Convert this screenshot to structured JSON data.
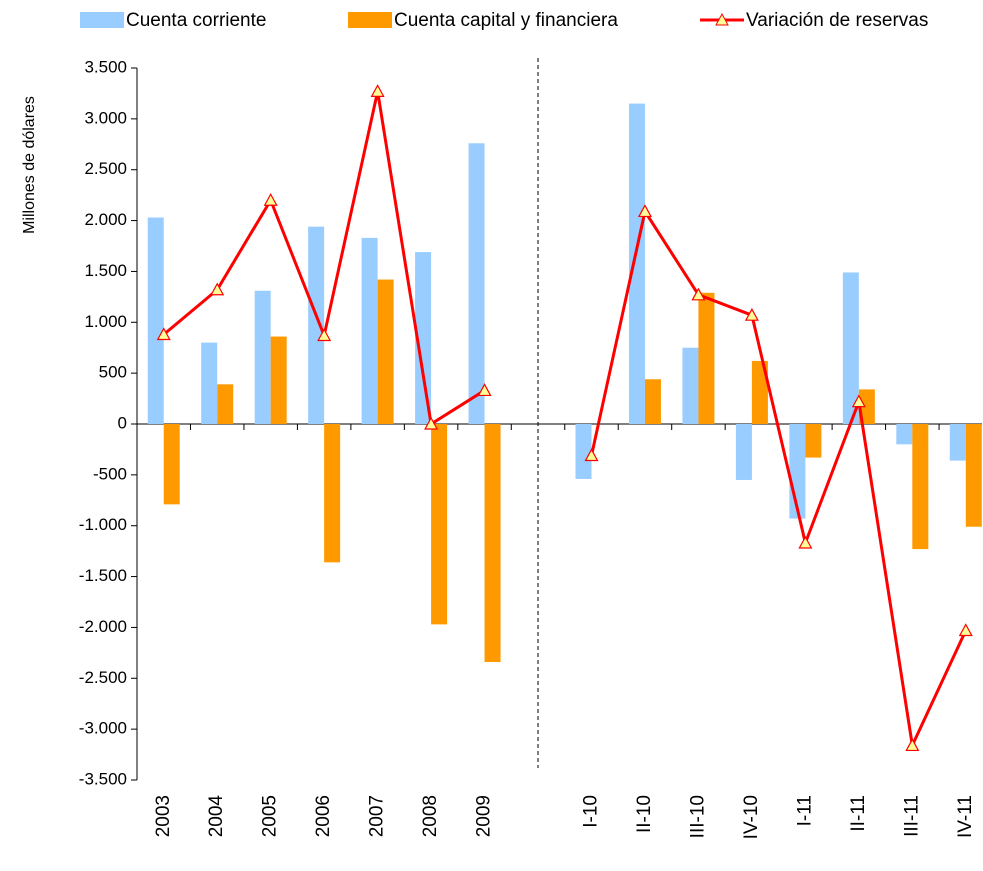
{
  "chart_data": {
    "type": "bar-line",
    "y_label": "Millones de dólares",
    "categories": [
      "2003",
      "2004",
      "2005",
      "2006",
      "2007",
      "2008",
      "2009",
      null,
      "I-10",
      "II-10",
      "III-10",
      "IV-10",
      "I-11",
      "II-11",
      "III-11",
      "IV-11"
    ],
    "series": [
      {
        "name": "Cuenta corriente",
        "type": "bar",
        "color": "#99ccff",
        "values": [
          2030,
          800,
          1310,
          1940,
          1830,
          1690,
          2760,
          null,
          -540,
          3150,
          750,
          -550,
          -930,
          1490,
          -200,
          -360
        ]
      },
      {
        "name": "Cuenta capital y financiera",
        "type": "bar",
        "color": "#ff9900",
        "values": [
          -790,
          390,
          860,
          -1360,
          1420,
          -1970,
          -2340,
          null,
          0,
          440,
          1290,
          620,
          -330,
          340,
          -1230,
          -1010
        ]
      },
      {
        "name": "Variación de reservas",
        "type": "line",
        "color": "#ff0000",
        "marker_color": "#ffff99",
        "values": [
          880,
          1320,
          2200,
          870,
          3270,
          0,
          330,
          null,
          -310,
          2090,
          1270,
          1070,
          -1170,
          220,
          -3160,
          -2030
        ]
      }
    ],
    "ylim": [
      -3500,
      3500
    ],
    "yticks": [
      {
        "value": -3500,
        "label": "-3.500"
      },
      {
        "value": -3000,
        "label": "-3.000"
      },
      {
        "value": -2500,
        "label": "-2.500"
      },
      {
        "value": -2000,
        "label": "-2.000"
      },
      {
        "value": -1500,
        "label": "-1.500"
      },
      {
        "value": -1000,
        "label": "-1.000"
      },
      -500,
      0,
      500,
      {
        "value": 1000,
        "label": "1.000"
      },
      {
        "value": 1500,
        "label": "1.500"
      },
      {
        "value": 2000,
        "label": "2.000"
      },
      {
        "value": 2500,
        "label": "2.500"
      },
      {
        "value": 3000,
        "label": "3.000"
      },
      {
        "value": 3500,
        "label": "3.500"
      }
    ],
    "grid": false,
    "legend": "top"
  }
}
